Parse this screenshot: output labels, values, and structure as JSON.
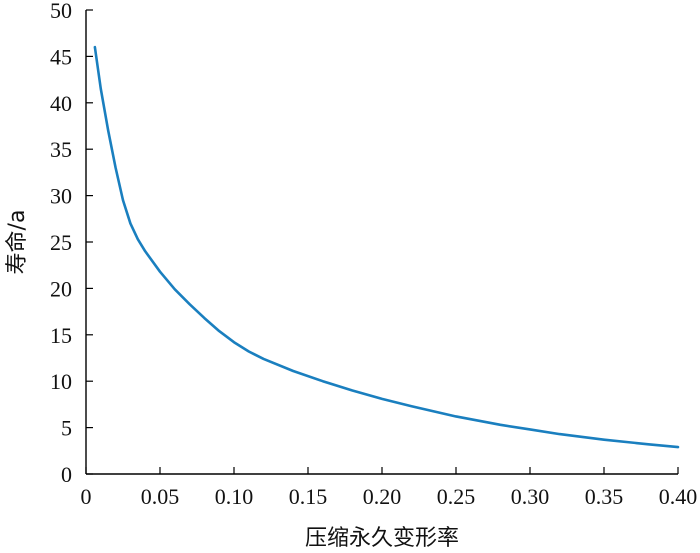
{
  "chart_data": {
    "type": "line",
    "title": "",
    "xlabel": "压缩永久变形率",
    "ylabel": "寿命/a",
    "xlim": [
      0,
      0.4
    ],
    "ylim": [
      0,
      50
    ],
    "x_ticks": [
      "0",
      "0.05",
      "0.10",
      "0.15",
      "0.20",
      "0.25",
      "0.30",
      "0.35",
      "0.40"
    ],
    "y_ticks": [
      "0",
      "5",
      "10",
      "15",
      "20",
      "25",
      "30",
      "35",
      "40",
      "45",
      "50"
    ],
    "grid": false,
    "series": [
      {
        "color": "#1a7fbf",
        "x": [
          0.006,
          0.01,
          0.015,
          0.02,
          0.025,
          0.03,
          0.035,
          0.04,
          0.05,
          0.06,
          0.07,
          0.08,
          0.09,
          0.1,
          0.11,
          0.12,
          0.14,
          0.16,
          0.18,
          0.2,
          0.22,
          0.25,
          0.28,
          0.3,
          0.32,
          0.35,
          0.38,
          0.4
        ],
        "y": [
          46.0,
          41.5,
          37.0,
          33.0,
          29.5,
          27.0,
          25.3,
          24.0,
          21.8,
          19.9,
          18.3,
          16.8,
          15.4,
          14.2,
          13.2,
          12.4,
          11.1,
          10.0,
          9.0,
          8.1,
          7.3,
          6.2,
          5.3,
          4.8,
          4.3,
          3.7,
          3.2,
          2.9
        ]
      }
    ]
  }
}
